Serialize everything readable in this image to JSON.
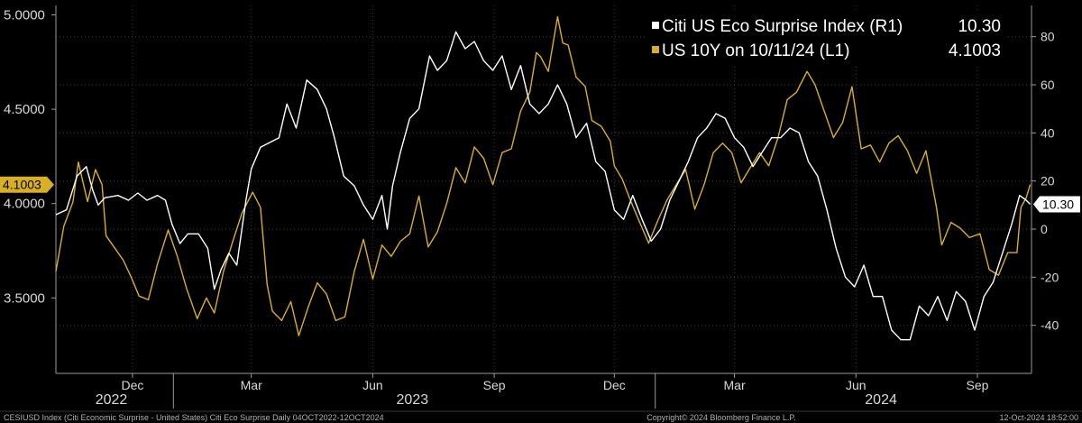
{
  "chart_data": {
    "type": "line",
    "title": "",
    "x_start": "2022-10-04",
    "x_end": "2024-10-12",
    "x_month_ticks": [
      {
        "label": "Dec",
        "date": "2022-12-01"
      },
      {
        "label": "Mar",
        "date": "2023-03-01"
      },
      {
        "label": "Jun",
        "date": "2023-06-01"
      },
      {
        "label": "Sep",
        "date": "2023-09-01"
      },
      {
        "label": "Dec",
        "date": "2023-12-01"
      },
      {
        "label": "Mar",
        "date": "2024-03-01"
      },
      {
        "label": "Jun",
        "date": "2024-06-01"
      },
      {
        "label": "Sep",
        "date": "2024-09-01"
      }
    ],
    "x_year_labels": [
      {
        "label": "2022",
        "date": "2022-11-15"
      },
      {
        "label": "2023",
        "date": "2023-07-01"
      },
      {
        "label": "2024",
        "date": "2024-06-20"
      }
    ],
    "x_year_dividers": [
      "2023-01-01",
      "2024-01-01"
    ],
    "left_axis": {
      "ylim": [
        3.1,
        5.05
      ],
      "ticks": [
        3.5,
        4.0,
        4.5,
        5.0
      ],
      "tick_labels": [
        "3.5000",
        "4.0000",
        "4.5000",
        "5.0000"
      ]
    },
    "right_axis": {
      "ylim": [
        -60,
        93
      ],
      "ticks": [
        -40,
        -20,
        0,
        20,
        40,
        60,
        80
      ],
      "tick_labels": [
        "-40",
        "-20",
        "0",
        "20",
        "40",
        "60",
        "80"
      ]
    },
    "grid": true,
    "legend_position": "top-right",
    "series": [
      {
        "name": "Citi US Eco Surprise Index (R1)",
        "legend_value": "10.30",
        "last_label": "10.30",
        "axis": "right",
        "color": "#ffffff",
        "points": [
          [
            "2022-10-04",
            6
          ],
          [
            "2022-10-12",
            8
          ],
          [
            "2022-10-20",
            22
          ],
          [
            "2022-10-27",
            26
          ],
          [
            "2022-11-01",
            16
          ],
          [
            "2022-11-05",
            10
          ],
          [
            "2022-11-10",
            13
          ],
          [
            "2022-11-20",
            14
          ],
          [
            "2022-11-28",
            12
          ],
          [
            "2022-12-05",
            15
          ],
          [
            "2022-12-12",
            12
          ],
          [
            "2022-12-20",
            14
          ],
          [
            "2022-12-26",
            12
          ],
          [
            "2022-12-31",
            2
          ],
          [
            "2023-01-06",
            -6
          ],
          [
            "2023-01-12",
            -2
          ],
          [
            "2023-01-20",
            -2
          ],
          [
            "2023-01-27",
            -8
          ],
          [
            "2023-02-01",
            -25
          ],
          [
            "2023-02-06",
            -17
          ],
          [
            "2023-02-12",
            -10
          ],
          [
            "2023-02-18",
            -15
          ],
          [
            "2023-02-25",
            12
          ],
          [
            "2023-03-01",
            25
          ],
          [
            "2023-03-08",
            34
          ],
          [
            "2023-03-15",
            36
          ],
          [
            "2023-03-22",
            38
          ],
          [
            "2023-03-28",
            52
          ],
          [
            "2023-04-04",
            42
          ],
          [
            "2023-04-12",
            62
          ],
          [
            "2023-04-20",
            58
          ],
          [
            "2023-04-27",
            50
          ],
          [
            "2023-05-03",
            38
          ],
          [
            "2023-05-10",
            22
          ],
          [
            "2023-05-18",
            18
          ],
          [
            "2023-05-25",
            10
          ],
          [
            "2023-06-01",
            4
          ],
          [
            "2023-06-08",
            14
          ],
          [
            "2023-06-12",
            0
          ],
          [
            "2023-06-16",
            18
          ],
          [
            "2023-06-22",
            32
          ],
          [
            "2023-06-29",
            46
          ],
          [
            "2023-07-06",
            50
          ],
          [
            "2023-07-14",
            72
          ],
          [
            "2023-07-20",
            66
          ],
          [
            "2023-07-27",
            70
          ],
          [
            "2023-08-03",
            82
          ],
          [
            "2023-08-10",
            75
          ],
          [
            "2023-08-17",
            78
          ],
          [
            "2023-08-24",
            70
          ],
          [
            "2023-08-31",
            66
          ],
          [
            "2023-09-07",
            72
          ],
          [
            "2023-09-14",
            58
          ],
          [
            "2023-09-21",
            68
          ],
          [
            "2023-09-28",
            52
          ],
          [
            "2023-10-05",
            48
          ],
          [
            "2023-10-12",
            52
          ],
          [
            "2023-10-19",
            60
          ],
          [
            "2023-10-26",
            52
          ],
          [
            "2023-11-02",
            38
          ],
          [
            "2023-11-10",
            44
          ],
          [
            "2023-11-17",
            28
          ],
          [
            "2023-11-24",
            24
          ],
          [
            "2023-12-01",
            8
          ],
          [
            "2023-12-08",
            4
          ],
          [
            "2023-12-15",
            14
          ],
          [
            "2023-12-22",
            4
          ],
          [
            "2023-12-29",
            -5
          ],
          [
            "2024-01-05",
            0
          ],
          [
            "2024-01-12",
            12
          ],
          [
            "2024-01-19",
            20
          ],
          [
            "2024-01-26",
            28
          ],
          [
            "2024-02-02",
            38
          ],
          [
            "2024-02-09",
            42
          ],
          [
            "2024-02-16",
            48
          ],
          [
            "2024-02-23",
            46
          ],
          [
            "2024-03-01",
            38
          ],
          [
            "2024-03-08",
            34
          ],
          [
            "2024-03-15",
            26
          ],
          [
            "2024-03-22",
            32
          ],
          [
            "2024-03-29",
            38
          ],
          [
            "2024-04-05",
            38
          ],
          [
            "2024-04-12",
            42
          ],
          [
            "2024-04-19",
            40
          ],
          [
            "2024-04-26",
            28
          ],
          [
            "2024-05-03",
            22
          ],
          [
            "2024-05-10",
            8
          ],
          [
            "2024-05-17",
            -8
          ],
          [
            "2024-05-24",
            -20
          ],
          [
            "2024-05-31",
            -24
          ],
          [
            "2024-06-07",
            -15
          ],
          [
            "2024-06-14",
            -28
          ],
          [
            "2024-06-21",
            -28
          ],
          [
            "2024-06-28",
            -42
          ],
          [
            "2024-07-05",
            -46
          ],
          [
            "2024-07-12",
            -46
          ],
          [
            "2024-07-19",
            -32
          ],
          [
            "2024-07-26",
            -36
          ],
          [
            "2024-08-02",
            -28
          ],
          [
            "2024-08-09",
            -38
          ],
          [
            "2024-08-16",
            -26
          ],
          [
            "2024-08-23",
            -30
          ],
          [
            "2024-08-30",
            -42
          ],
          [
            "2024-09-06",
            -28
          ],
          [
            "2024-09-13",
            -22
          ],
          [
            "2024-09-20",
            -10
          ],
          [
            "2024-09-27",
            2
          ],
          [
            "2024-10-03",
            14
          ],
          [
            "2024-10-08",
            12
          ],
          [
            "2024-10-11",
            10.3
          ]
        ]
      },
      {
        "name": "US 10Y on 10/11/24 (L1)",
        "legend_value": "4.1003",
        "last_label": "4.1003",
        "axis": "left",
        "color": "#d9b025",
        "points": [
          [
            "2022-10-04",
            3.64
          ],
          [
            "2022-10-10",
            3.88
          ],
          [
            "2022-10-17",
            4.01
          ],
          [
            "2022-10-21",
            4.22
          ],
          [
            "2022-10-25",
            4.1
          ],
          [
            "2022-10-28",
            4.01
          ],
          [
            "2022-11-03",
            4.18
          ],
          [
            "2022-11-08",
            4.1
          ],
          [
            "2022-11-11",
            3.83
          ],
          [
            "2022-11-17",
            3.77
          ],
          [
            "2022-11-24",
            3.7
          ],
          [
            "2022-11-30",
            3.61
          ],
          [
            "2022-12-06",
            3.51
          ],
          [
            "2022-12-13",
            3.49
          ],
          [
            "2022-12-20",
            3.68
          ],
          [
            "2022-12-28",
            3.86
          ],
          [
            "2023-01-04",
            3.72
          ],
          [
            "2023-01-11",
            3.55
          ],
          [
            "2023-01-19",
            3.39
          ],
          [
            "2023-01-26",
            3.5
          ],
          [
            "2023-02-01",
            3.42
          ],
          [
            "2023-02-08",
            3.64
          ],
          [
            "2023-02-15",
            3.8
          ],
          [
            "2023-02-22",
            3.95
          ],
          [
            "2023-03-02",
            4.06
          ],
          [
            "2023-03-08",
            3.98
          ],
          [
            "2023-03-13",
            3.57
          ],
          [
            "2023-03-17",
            3.43
          ],
          [
            "2023-03-24",
            3.38
          ],
          [
            "2023-03-31",
            3.48
          ],
          [
            "2023-04-06",
            3.3
          ],
          [
            "2023-04-13",
            3.45
          ],
          [
            "2023-04-20",
            3.58
          ],
          [
            "2023-04-27",
            3.52
          ],
          [
            "2023-05-04",
            3.38
          ],
          [
            "2023-05-11",
            3.4
          ],
          [
            "2023-05-18",
            3.64
          ],
          [
            "2023-05-25",
            3.81
          ],
          [
            "2023-06-01",
            3.6
          ],
          [
            "2023-06-08",
            3.78
          ],
          [
            "2023-06-15",
            3.72
          ],
          [
            "2023-06-22",
            3.8
          ],
          [
            "2023-06-29",
            3.84
          ],
          [
            "2023-07-06",
            4.04
          ],
          [
            "2023-07-13",
            3.77
          ],
          [
            "2023-07-20",
            3.85
          ],
          [
            "2023-07-27",
            4.0
          ],
          [
            "2023-08-03",
            4.19
          ],
          [
            "2023-08-10",
            4.11
          ],
          [
            "2023-08-17",
            4.3
          ],
          [
            "2023-08-24",
            4.24
          ],
          [
            "2023-08-31",
            4.1
          ],
          [
            "2023-09-07",
            4.27
          ],
          [
            "2023-09-14",
            4.29
          ],
          [
            "2023-09-21",
            4.49
          ],
          [
            "2023-09-28",
            4.59
          ],
          [
            "2023-10-03",
            4.8
          ],
          [
            "2023-10-06",
            4.78
          ],
          [
            "2023-10-12",
            4.7
          ],
          [
            "2023-10-19",
            4.99
          ],
          [
            "2023-10-23",
            4.85
          ],
          [
            "2023-10-27",
            4.84
          ],
          [
            "2023-11-02",
            4.67
          ],
          [
            "2023-11-09",
            4.62
          ],
          [
            "2023-11-14",
            4.44
          ],
          [
            "2023-11-21",
            4.41
          ],
          [
            "2023-11-28",
            4.33
          ],
          [
            "2023-12-01",
            4.2
          ],
          [
            "2023-12-07",
            4.13
          ],
          [
            "2023-12-13",
            4.02
          ],
          [
            "2023-12-19",
            3.92
          ],
          [
            "2023-12-27",
            3.79
          ],
          [
            "2024-01-03",
            3.91
          ],
          [
            "2024-01-10",
            4.02
          ],
          [
            "2024-01-17",
            4.1
          ],
          [
            "2024-01-24",
            4.18
          ],
          [
            "2024-01-31",
            3.97
          ],
          [
            "2024-02-07",
            4.1
          ],
          [
            "2024-02-14",
            4.27
          ],
          [
            "2024-02-21",
            4.32
          ],
          [
            "2024-02-28",
            4.27
          ],
          [
            "2024-03-06",
            4.11
          ],
          [
            "2024-03-13",
            4.19
          ],
          [
            "2024-03-20",
            4.27
          ],
          [
            "2024-03-27",
            4.2
          ],
          [
            "2024-04-03",
            4.35
          ],
          [
            "2024-04-10",
            4.55
          ],
          [
            "2024-04-17",
            4.59
          ],
          [
            "2024-04-25",
            4.7
          ],
          [
            "2024-05-01",
            4.63
          ],
          [
            "2024-05-08",
            4.49
          ],
          [
            "2024-05-15",
            4.35
          ],
          [
            "2024-05-22",
            4.43
          ],
          [
            "2024-05-29",
            4.62
          ],
          [
            "2024-06-05",
            4.29
          ],
          [
            "2024-06-12",
            4.31
          ],
          [
            "2024-06-19",
            4.22
          ],
          [
            "2024-06-26",
            4.32
          ],
          [
            "2024-07-03",
            4.36
          ],
          [
            "2024-07-10",
            4.28
          ],
          [
            "2024-07-17",
            4.16
          ],
          [
            "2024-07-24",
            4.28
          ],
          [
            "2024-08-01",
            3.98
          ],
          [
            "2024-08-05",
            3.78
          ],
          [
            "2024-08-12",
            3.9
          ],
          [
            "2024-08-19",
            3.87
          ],
          [
            "2024-08-26",
            3.82
          ],
          [
            "2024-09-03",
            3.84
          ],
          [
            "2024-09-10",
            3.65
          ],
          [
            "2024-09-17",
            3.62
          ],
          [
            "2024-09-24",
            3.74
          ],
          [
            "2024-10-01",
            3.74
          ],
          [
            "2024-10-04",
            3.98
          ],
          [
            "2024-10-08",
            4.03
          ],
          [
            "2024-10-11",
            4.1003
          ]
        ]
      }
    ]
  },
  "footer": {
    "left": "CESIUSD Index (Citi Economic Surprise - United States) Citi Eco Surprise  Daily 04OCT2022-12OCT2024",
    "center": "Copyright© 2024 Bloomberg Finance L.P.",
    "right": "12-Oct-2024 18:52:00"
  }
}
